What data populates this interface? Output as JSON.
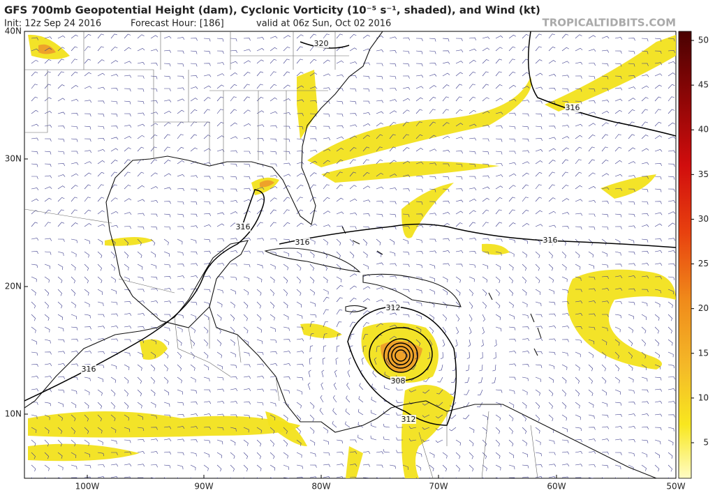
{
  "header": {
    "title": "GFS 700mb Geopotential Height (dam), Cyclonic Vorticity (10⁻⁵ s⁻¹, shaded), and Wind (kt)",
    "init": "Init: 12z Sep 24 2016",
    "forecast_hour": "Forecast Hour: [186]",
    "valid": "valid at 06z Sun, Oct 02 2016",
    "site": "TROPICALTIDBITS.COM"
  },
  "map": {
    "lat_labels": [
      "40N",
      "30N",
      "20N",
      "10N"
    ],
    "lon_labels": [
      "100W",
      "90W",
      "80W",
      "70W",
      "60W",
      "50W"
    ],
    "contour_labels": [
      "320",
      "316",
      "316",
      "316",
      "316",
      "312",
      "308",
      "312",
      "316"
    ]
  },
  "colorbar": {
    "ticks": [
      5,
      10,
      15,
      20,
      25,
      30,
      35,
      40,
      45,
      50
    ]
  }
}
